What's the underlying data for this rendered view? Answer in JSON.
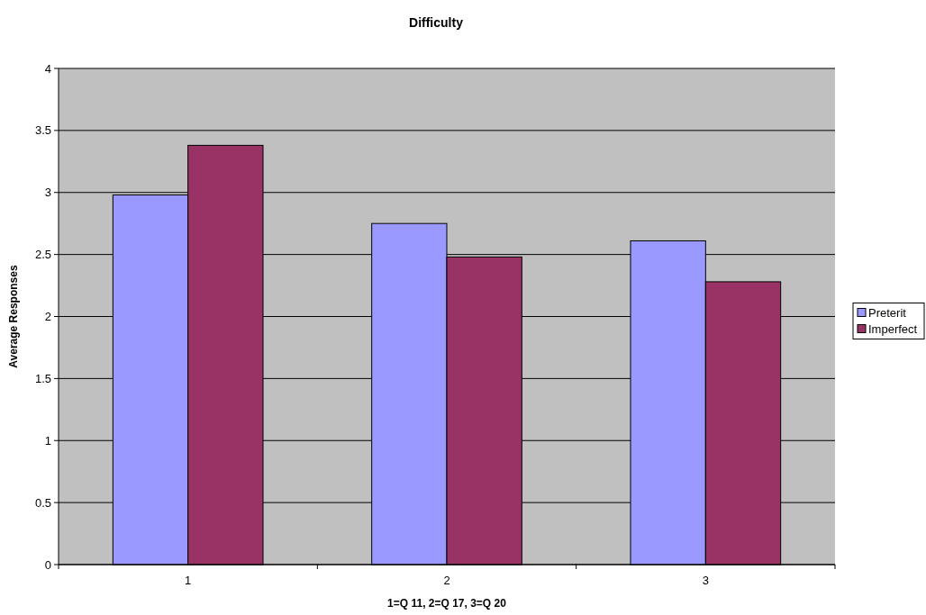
{
  "chart_data": {
    "type": "bar",
    "title": "Difficulty",
    "xlabel": "1=Q 11, 2=Q 17, 3=Q 20",
    "ylabel": "Average Responses",
    "categories": [
      "1",
      "2",
      "3"
    ],
    "series": [
      {
        "name": "Preterit",
        "color": "#9999ff",
        "values": [
          2.98,
          2.75,
          2.61
        ]
      },
      {
        "name": "Imperfect",
        "color": "#993366",
        "values": [
          3.38,
          2.48,
          2.28
        ]
      }
    ],
    "ylim": [
      0,
      4
    ],
    "yticks": [
      0,
      0.5,
      1,
      1.5,
      2,
      2.5,
      3,
      3.5,
      4
    ],
    "grid": "y",
    "legend": "right"
  }
}
